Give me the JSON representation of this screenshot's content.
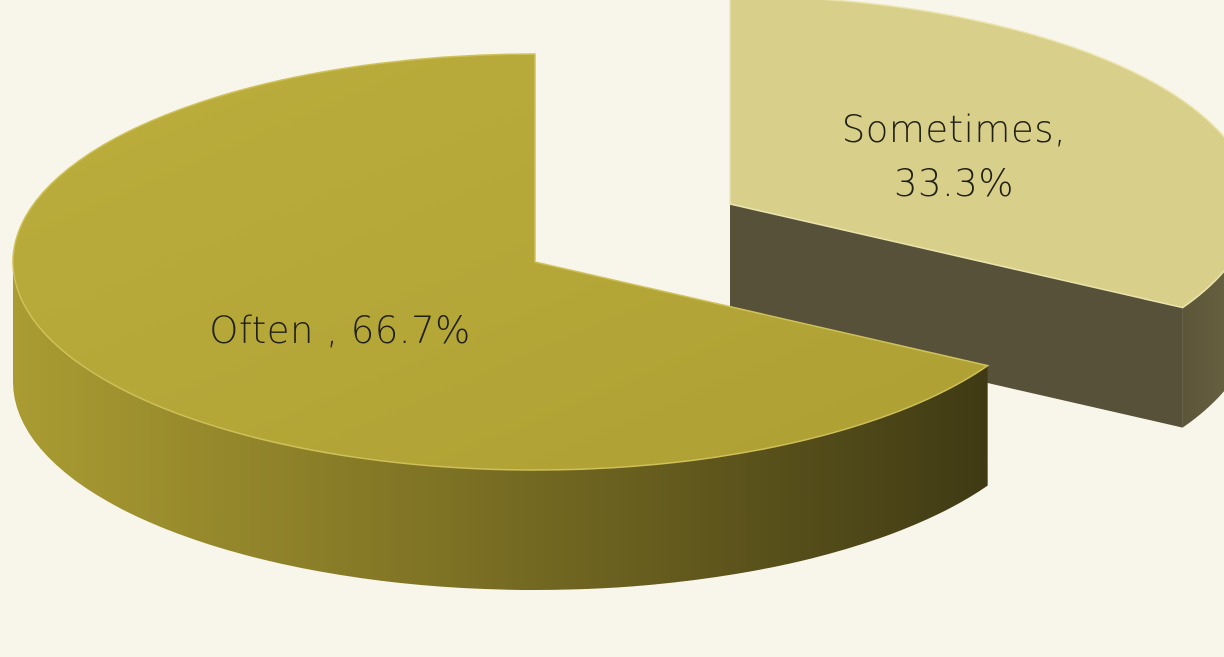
{
  "chart_data": {
    "type": "pie",
    "title": "",
    "slices": [
      {
        "category": "Often ",
        "value": 66.7,
        "label": "Often , 66.7%",
        "top_color": "#b4a436",
        "side_light": "#a89a30",
        "side_dark": "#4a4418"
      },
      {
        "category": "Sometimes",
        "value": 33.3,
        "label_line1": "Sometimes,",
        "label_line2": "33.3%",
        "top_color": "#d8cf8a",
        "side_light": "#6e6646",
        "side_dark": "#57513a"
      }
    ],
    "legend": "none",
    "style": "3d-exploded"
  }
}
